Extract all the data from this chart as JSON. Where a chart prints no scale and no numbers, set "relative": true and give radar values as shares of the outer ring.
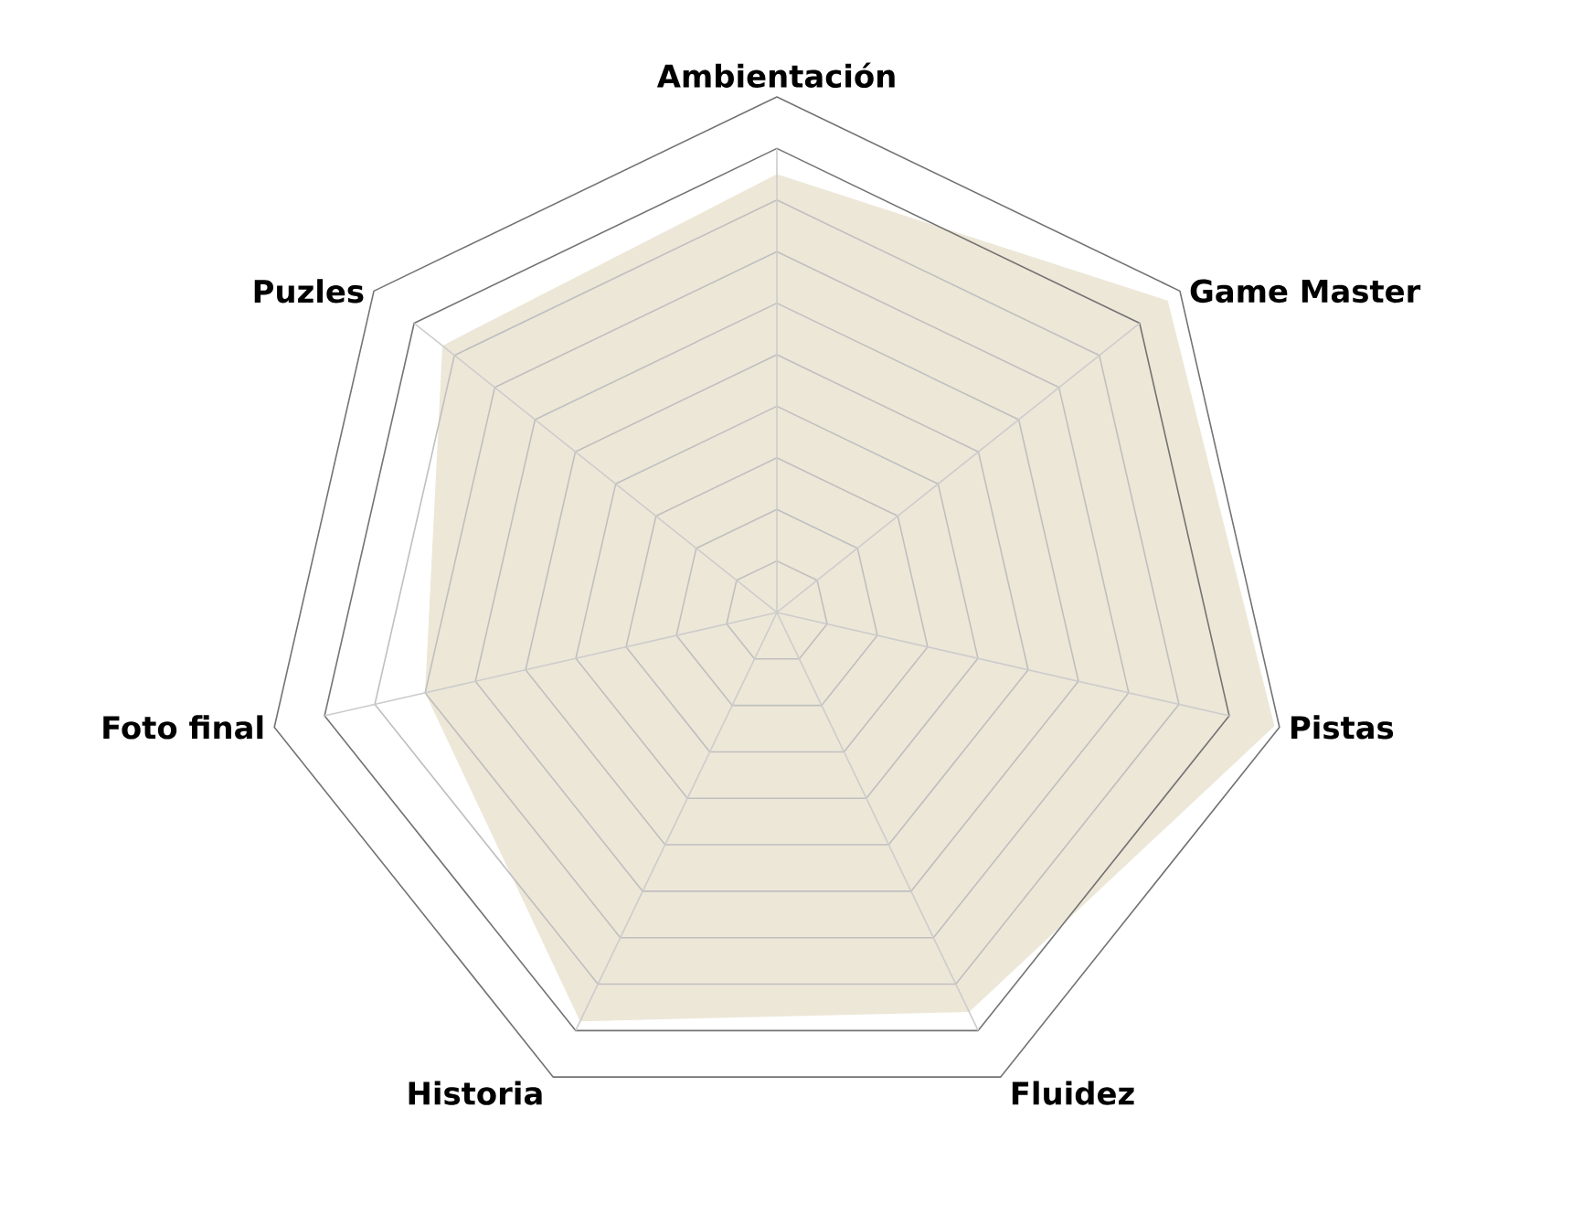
{
  "chart_data": {
    "type": "radar",
    "relative": true,
    "grid": true,
    "categories": [
      "Ambientación",
      "Game Master",
      "Pistas",
      "Fluidez",
      "Historia",
      "Foto final",
      "Puzles"
    ],
    "series": [
      {
        "color": "#ede7d8",
        "values": [
          0.85,
          0.97,
          0.99,
          0.86,
          0.88,
          0.7,
          0.83
        ]
      }
    ]
  }
}
